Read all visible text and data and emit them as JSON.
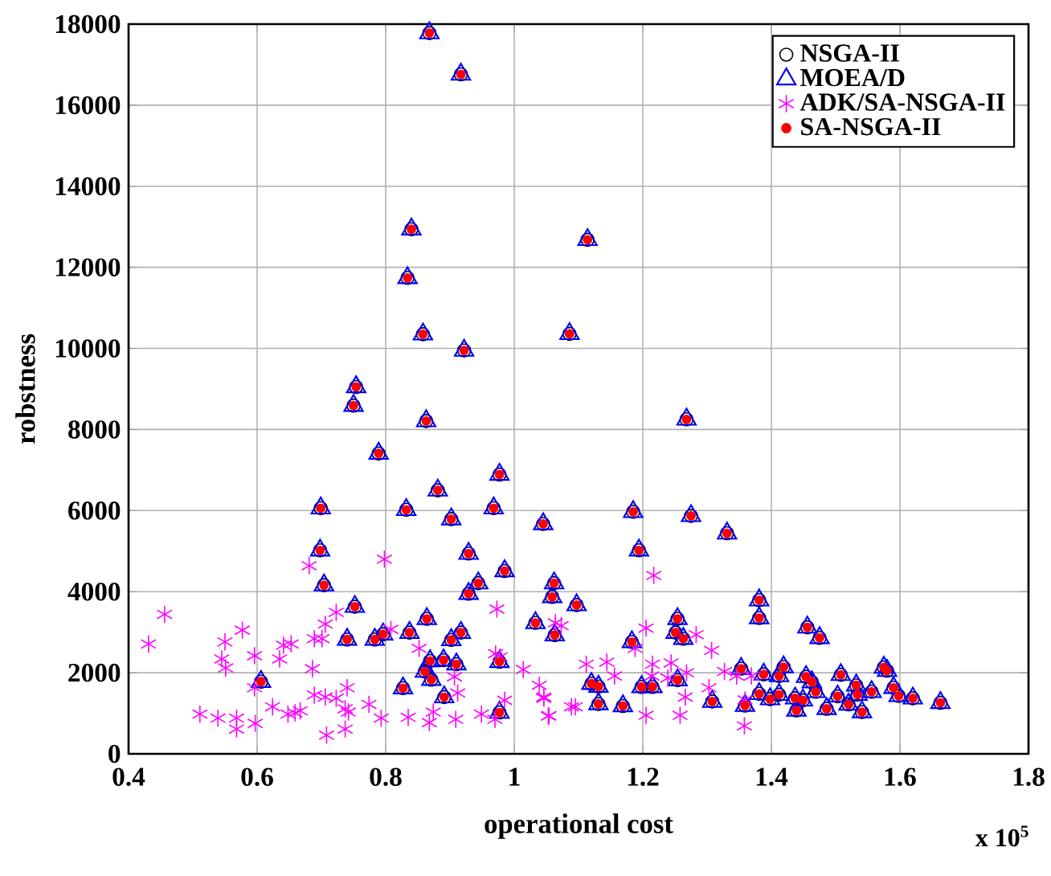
{
  "chart_data": {
    "type": "scatter",
    "xlabel": "operational cost",
    "ylabel": "robstness",
    "xlim": [
      0.4,
      1.8
    ],
    "ylim": [
      0,
      18000
    ],
    "xticks": [
      0.4,
      0.6,
      0.8,
      1,
      1.2,
      1.4,
      1.6,
      1.8
    ],
    "yticks": [
      0,
      2000,
      4000,
      6000,
      8000,
      10000,
      12000,
      14000,
      16000,
      18000
    ],
    "grid": true,
    "legend": "top right",
    "annotations": [
      "x 10$^{5}$"
    ],
    "series": [
      {
        "name": "NSGA-II",
        "color": "#000000",
        "marker": "circle",
        "x": [
          0.868,
          0.917,
          0.84,
          0.834,
          0.858,
          0.922,
          0.754,
          0.75,
          1.086,
          1.114,
          1.268,
          0.863,
          0.789,
          0.977,
          0.881,
          0.699,
          0.832,
          0.902,
          0.968,
          1.045,
          0.698,
          0.929,
          0.985,
          0.944,
          0.929,
          0.704,
          0.752,
          1.062,
          1.059,
          0.864,
          0.74,
          0.783,
          0.796,
          0.837,
          0.917,
          0.902,
          1.033,
          1.063,
          0.977,
          0.869,
          0.89,
          0.91,
          0.861,
          0.871,
          0.606,
          0.827,
          0.891,
          0.977,
          1.185,
          1.275,
          1.331,
          1.194,
          1.097,
          1.381,
          1.381,
          1.254,
          1.251,
          1.263,
          1.456,
          1.475,
          1.183,
          1.353,
          1.12,
          1.131,
          1.198,
          1.215,
          1.254,
          1.131,
          1.169,
          1.308,
          1.359,
          1.388,
          1.419,
          1.412,
          1.381,
          1.398,
          1.412,
          1.454,
          1.463,
          1.437,
          1.449,
          1.439,
          1.469,
          1.486,
          1.508,
          1.503,
          1.52,
          1.532,
          1.534,
          1.541,
          1.556,
          1.575,
          1.58,
          1.59,
          1.598,
          1.62,
          1.663
        ],
        "values": [
          17780,
          16760,
          12940,
          11740,
          10350,
          9950,
          9050,
          8590,
          10360,
          12680,
          8250,
          8210,
          7410,
          6890,
          6500,
          6060,
          6020,
          5790,
          6060,
          5670,
          5020,
          4940,
          4510,
          4210,
          3950,
          4160,
          3630,
          4210,
          3870,
          3330,
          2820,
          2820,
          2950,
          2990,
          2990,
          2810,
          3230,
          2930,
          2270,
          2290,
          2310,
          2210,
          2030,
          1830,
          1780,
          1620,
          1400,
          1020,
          5970,
          5870,
          5440,
          5020,
          3670,
          3790,
          3350,
          3330,
          2990,
          2840,
          3120,
          2860,
          2760,
          2100,
          1730,
          1660,
          1650,
          1650,
          1820,
          1230,
          1180,
          1290,
          1190,
          1960,
          2140,
          1920,
          1480,
          1350,
          1460,
          1900,
          1770,
          1370,
          1320,
          1070,
          1530,
          1110,
          1950,
          1420,
          1220,
          1690,
          1460,
          1030,
          1530,
          2130,
          2050,
          1630,
          1430,
          1370,
          1260
        ]
      },
      {
        "name": "MOEA/D",
        "color": "#0000ff",
        "marker": "triangle",
        "x": [
          0.868,
          0.917,
          0.84,
          0.834,
          0.858,
          0.922,
          0.754,
          0.75,
          1.086,
          1.114,
          1.268,
          0.863,
          0.789,
          0.977,
          0.881,
          0.699,
          0.832,
          0.902,
          0.968,
          1.045,
          0.698,
          0.929,
          0.985,
          0.944,
          0.929,
          0.704,
          0.752,
          1.062,
          1.059,
          0.864,
          0.74,
          0.783,
          0.796,
          0.837,
          0.917,
          0.902,
          1.033,
          1.063,
          0.977,
          0.869,
          0.89,
          0.91,
          0.861,
          0.871,
          0.606,
          0.827,
          0.891,
          0.977,
          1.185,
          1.275,
          1.331,
          1.194,
          1.097,
          1.381,
          1.381,
          1.254,
          1.251,
          1.263,
          1.456,
          1.475,
          1.183,
          1.353,
          1.12,
          1.131,
          1.198,
          1.215,
          1.254,
          1.131,
          1.169,
          1.308,
          1.359,
          1.388,
          1.419,
          1.412,
          1.381,
          1.398,
          1.412,
          1.454,
          1.463,
          1.437,
          1.449,
          1.439,
          1.469,
          1.486,
          1.508,
          1.503,
          1.52,
          1.532,
          1.534,
          1.541,
          1.556,
          1.575,
          1.58,
          1.59,
          1.598,
          1.62,
          1.663
        ],
        "values": [
          17780,
          16760,
          12940,
          11740,
          10350,
          9950,
          9050,
          8590,
          10360,
          12680,
          8250,
          8210,
          7410,
          6890,
          6500,
          6060,
          6020,
          5790,
          6060,
          5670,
          5020,
          4940,
          4510,
          4210,
          3950,
          4160,
          3630,
          4210,
          3870,
          3330,
          2820,
          2820,
          2950,
          2990,
          2990,
          2810,
          3230,
          2930,
          2270,
          2290,
          2310,
          2210,
          2030,
          1830,
          1780,
          1620,
          1400,
          1020,
          5970,
          5870,
          5440,
          5020,
          3670,
          3790,
          3350,
          3330,
          2990,
          2840,
          3120,
          2860,
          2760,
          2100,
          1730,
          1660,
          1650,
          1650,
          1820,
          1230,
          1180,
          1290,
          1190,
          1960,
          2140,
          1920,
          1480,
          1350,
          1460,
          1900,
          1770,
          1370,
          1320,
          1070,
          1530,
          1110,
          1950,
          1420,
          1220,
          1690,
          1460,
          1030,
          1530,
          2130,
          2050,
          1630,
          1430,
          1370,
          1260
        ]
      },
      {
        "name": "ADK/SA-NSGA-II",
        "color": "#ff00ff",
        "marker": "cross",
        "x": [
          0.431,
          0.456,
          0.511,
          0.539,
          0.545,
          0.551,
          0.55,
          0.568,
          0.568,
          0.577,
          0.597,
          0.596,
          0.596,
          0.624,
          0.635,
          0.641,
          0.653,
          0.648,
          0.659,
          0.667,
          0.681,
          0.686,
          0.689,
          0.689,
          0.701,
          0.706,
          0.706,
          0.708,
          0.723,
          0.723,
          0.737,
          0.737,
          0.74,
          0.742,
          0.774,
          0.793,
          0.798,
          0.808,
          0.835,
          0.852,
          0.868,
          0.874,
          0.907,
          0.912,
          0.909,
          0.949,
          0.973,
          0.971,
          0.978,
          0.97,
          0.985,
          1.014,
          1.039,
          1.046,
          1.053,
          1.089,
          1.064,
          1.073,
          1.046,
          1.054,
          1.095,
          1.112,
          1.144,
          1.156,
          1.217,
          1.205,
          1.188,
          1.215,
          1.214,
          1.244,
          1.239,
          1.268,
          1.266,
          1.258,
          1.205,
          1.283,
          1.307,
          1.303,
          1.327,
          1.346,
          1.369,
          1.359,
          1.358
        ],
        "values": [
          2710,
          3440,
          980,
          880,
          2340,
          2120,
          2760,
          880,
          610,
          3050,
          750,
          2420,
          1630,
          1160,
          2340,
          2680,
          2710,
          980,
          1010,
          1060,
          4640,
          2100,
          2840,
          1450,
          2840,
          3200,
          1400,
          460,
          3490,
          1370,
          1110,
          610,
          1630,
          1030,
          1220,
          880,
          4800,
          3070,
          900,
          2600,
          770,
          1030,
          1900,
          1500,
          850,
          980,
          3570,
          2470,
          2390,
          850,
          1320,
          2080,
          1690,
          1370,
          930,
          1160,
          3230,
          3160,
          1400,
          940,
          1160,
          2210,
          2260,
          1920,
          4400,
          3100,
          2600,
          2210,
          1920,
          2240,
          1870,
          2000,
          1400,
          950,
          950,
          2940,
          2550,
          1630,
          2030,
          1920,
          1920,
          1330,
          690
        ]
      },
      {
        "name": "SA-NSGA-II",
        "color": "#ff0000",
        "marker": "circle",
        "x": [
          0.868,
          0.917,
          0.84,
          0.834,
          0.858,
          0.922,
          0.754,
          0.75,
          1.086,
          1.114,
          1.268,
          0.863,
          0.789,
          0.977,
          0.881,
          0.699,
          0.832,
          0.902,
          0.968,
          1.045,
          0.698,
          0.929,
          0.985,
          0.944,
          0.929,
          0.704,
          0.752,
          1.062,
          1.059,
          0.864,
          0.74,
          0.783,
          0.796,
          0.837,
          0.917,
          0.902,
          1.033,
          1.063,
          0.977,
          0.869,
          0.89,
          0.91,
          0.861,
          0.871,
          0.606,
          0.827,
          0.891,
          0.977,
          1.185,
          1.275,
          1.331,
          1.194,
          1.097,
          1.381,
          1.381,
          1.254,
          1.251,
          1.263,
          1.456,
          1.475,
          1.183,
          1.353,
          1.12,
          1.131,
          1.198,
          1.215,
          1.254,
          1.131,
          1.169,
          1.308,
          1.359,
          1.388,
          1.419,
          1.412,
          1.381,
          1.398,
          1.412,
          1.454,
          1.463,
          1.437,
          1.449,
          1.439,
          1.469,
          1.486,
          1.508,
          1.503,
          1.52,
          1.532,
          1.534,
          1.541,
          1.556,
          1.575,
          1.58,
          1.59,
          1.598,
          1.62,
          1.663
        ],
        "values": [
          17780,
          16760,
          12940,
          11740,
          10350,
          9950,
          9050,
          8590,
          10360,
          12680,
          8250,
          8210,
          7410,
          6890,
          6500,
          6060,
          6020,
          5790,
          6060,
          5670,
          5020,
          4940,
          4510,
          4210,
          3950,
          4160,
          3630,
          4210,
          3870,
          3330,
          2820,
          2820,
          2950,
          2990,
          2990,
          2810,
          3230,
          2930,
          2270,
          2290,
          2310,
          2210,
          2030,
          1830,
          1780,
          1620,
          1400,
          1020,
          5970,
          5870,
          5440,
          5020,
          3670,
          3790,
          3350,
          3330,
          2990,
          2840,
          3120,
          2860,
          2760,
          2100,
          1730,
          1660,
          1650,
          1650,
          1820,
          1230,
          1180,
          1290,
          1190,
          1960,
          2140,
          1920,
          1480,
          1350,
          1460,
          1900,
          1770,
          1370,
          1320,
          1070,
          1530,
          1110,
          1950,
          1420,
          1220,
          1690,
          1460,
          1030,
          1530,
          2130,
          2050,
          1630,
          1430,
          1370,
          1260
        ]
      }
    ]
  }
}
